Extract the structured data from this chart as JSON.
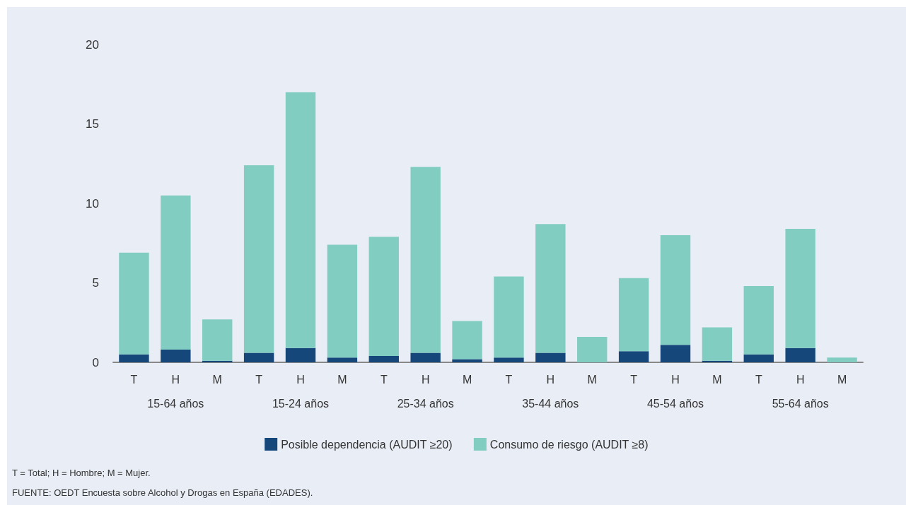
{
  "chart_data": {
    "type": "bar",
    "stacked": true,
    "categories": [
      "T",
      "H",
      "M",
      "T",
      "H",
      "M",
      "T",
      "H",
      "M",
      "T",
      "H",
      "M",
      "T",
      "H",
      "M",
      "T",
      "H",
      "M"
    ],
    "series": [
      {
        "name": "Posible dependencia (AUDIT ≥20)",
        "color": "#15477a",
        "values": [
          0.5,
          0.8,
          0.1,
          0.6,
          0.9,
          0.3,
          0.4,
          0.6,
          0.2,
          0.3,
          0.6,
          0,
          0.7,
          1.1,
          0.1,
          0.5,
          0.9,
          0
        ]
      },
      {
        "name": "Consumo de riesgo (AUDIT ≥8)",
        "color": "#82cdc1",
        "values": [
          6.4,
          9.7,
          2.6,
          11.8,
          16.1,
          7.1,
          7.5,
          11.7,
          2.4,
          5.1,
          8.1,
          1.6,
          4.6,
          6.9,
          2.1,
          4.3,
          7.5,
          0.3
        ]
      }
    ],
    "ylim": [
      0,
      20
    ],
    "yticks": [
      0,
      5,
      10,
      15,
      20
    ],
    "grid": false,
    "legend": "bottom",
    "annotations": [
      "15-64 años",
      "15-24 años",
      "25-34 años",
      "35-44 años",
      "45-54 años",
      "55-64 años",
      "T = Total; H = Hombre; M = Mujer.",
      "FUENTE: OEDT Encuesta sobre Alcohol y Drogas en España (EDADES)."
    ]
  }
}
